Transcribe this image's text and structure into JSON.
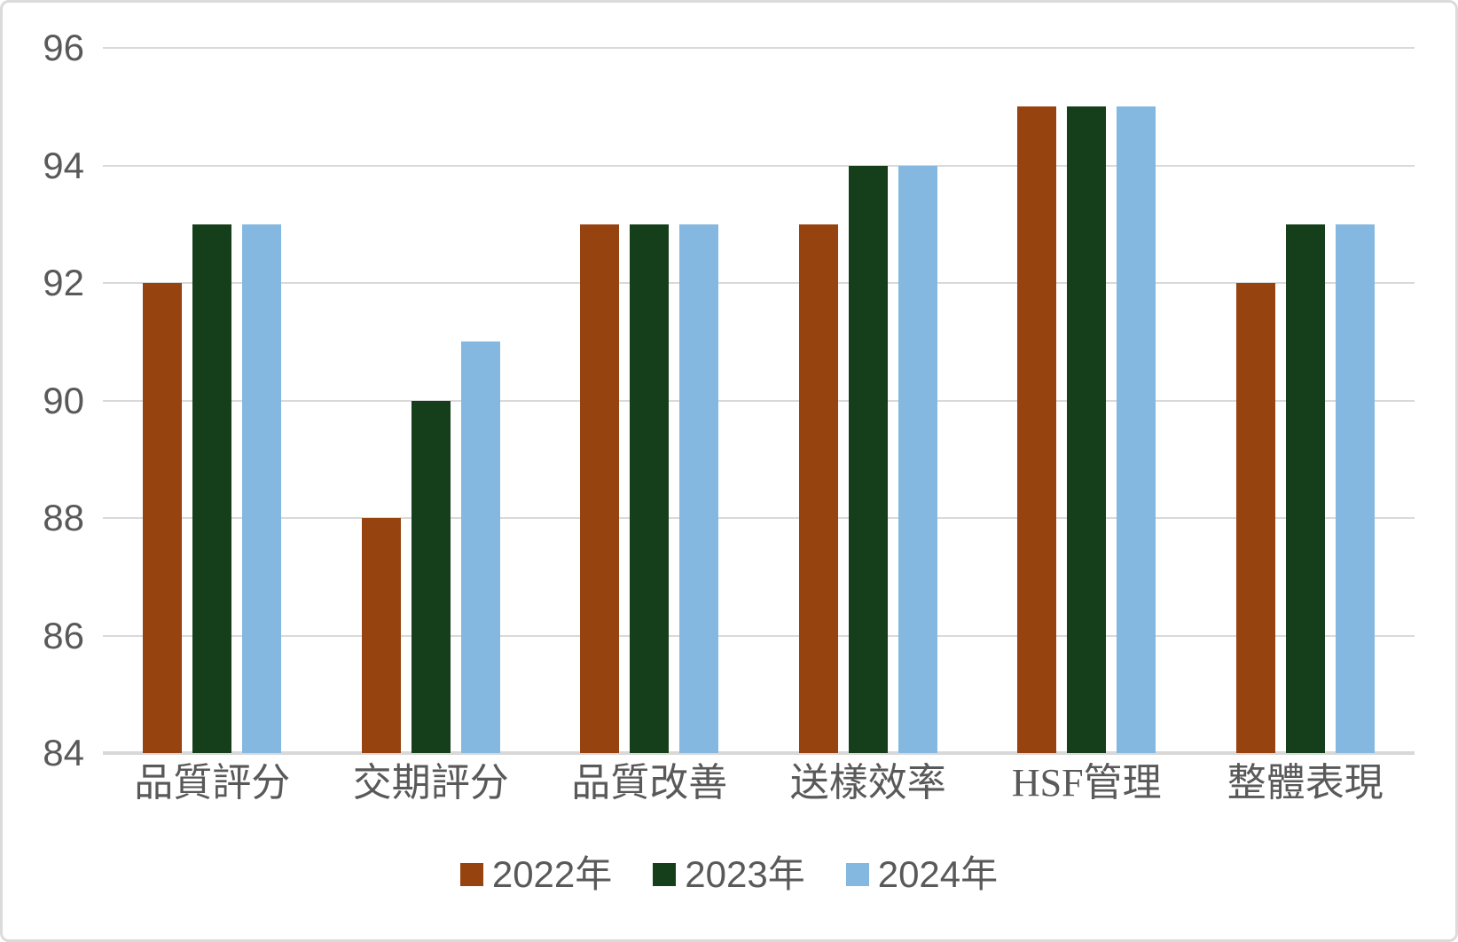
{
  "chart_data": {
    "type": "bar",
    "title": "",
    "xlabel": "",
    "ylabel": "",
    "categories": [
      "品質評分",
      "交期評分",
      "品質改善",
      "送樣效率",
      "HSF管理",
      "整體表現"
    ],
    "series": [
      {
        "name": "2022年",
        "color": "#964310",
        "values": [
          92,
          88,
          93,
          93,
          95,
          92
        ]
      },
      {
        "name": "2023年",
        "color": "#143F1A",
        "values": [
          93,
          90,
          93,
          94,
          95,
          93
        ]
      },
      {
        "name": "2024年",
        "color": "#84B8E0",
        "values": [
          93,
          91,
          93,
          94,
          95,
          93
        ]
      }
    ],
    "ylim": [
      84,
      96
    ],
    "y_ticks": [
      84,
      86,
      88,
      90,
      92,
      94,
      96
    ],
    "grid": true,
    "legend_position": "bottom"
  },
  "styles": {
    "text_color": "#595959",
    "gridline_color": "#D9D9D9",
    "axis_line_color": "#D8D8D8",
    "background": "#FFFFFF",
    "border_color": "#DBDBDB"
  }
}
